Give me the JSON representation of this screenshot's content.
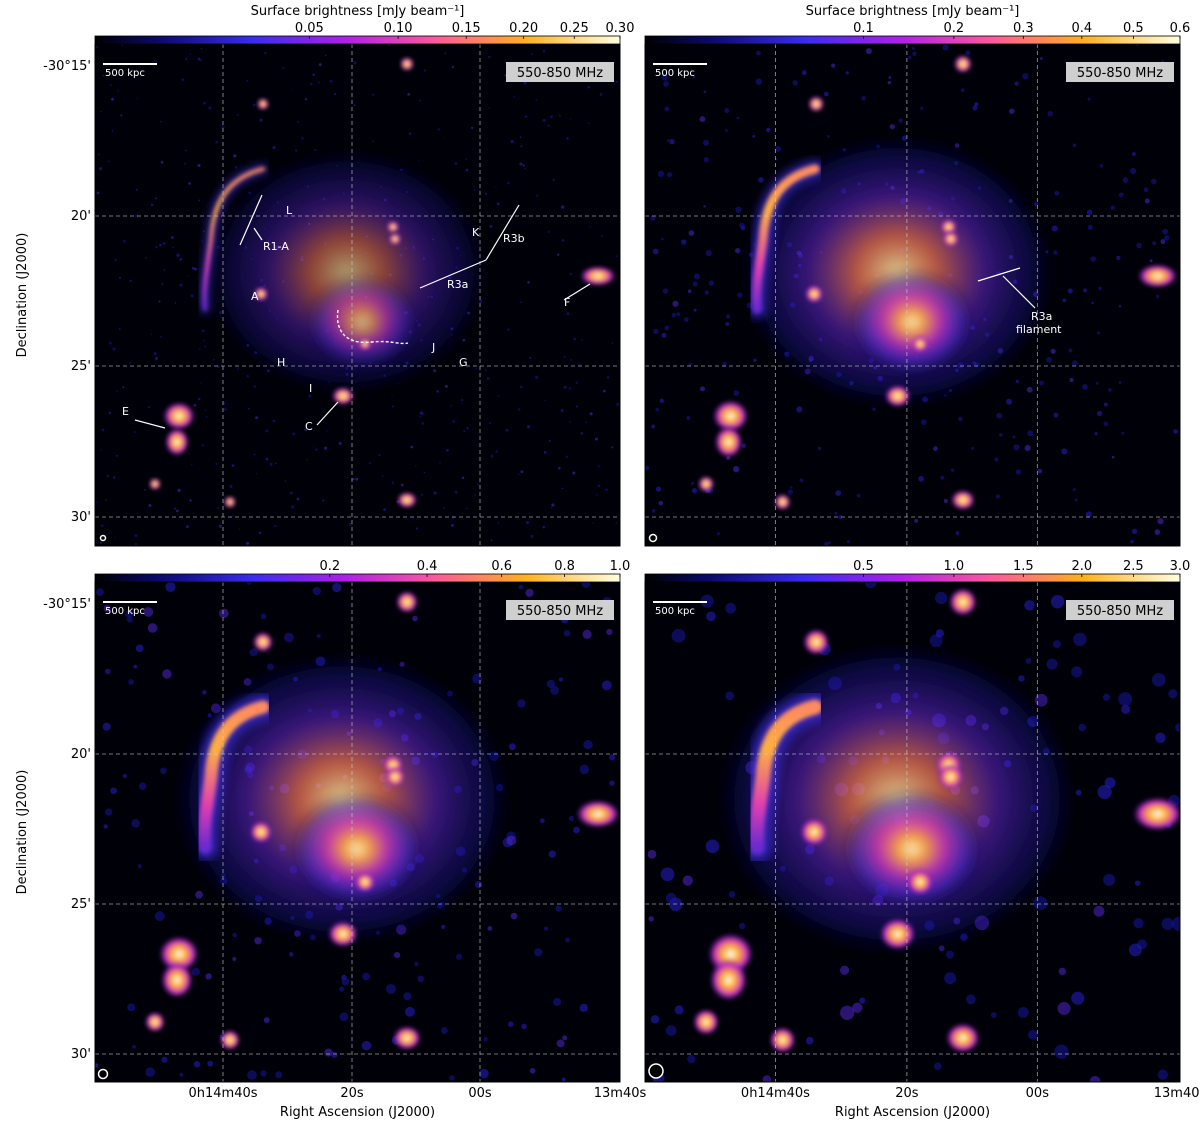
{
  "panels": [
    {
      "id": "tl",
      "colorbar_label": "Surface brightness [mJy beam⁻¹]",
      "colorbar_ticks": [
        "0.05",
        "0.10",
        "0.15",
        "0.20",
        "0.25",
        "0.30"
      ],
      "band": "550-850 MHz",
      "scale_bar": "500 kpc",
      "dec_ticks": [
        "-30°15'",
        "20'",
        "25'",
        "30'"
      ],
      "ylabel": "Declination (J2000)",
      "ra_ticks": [],
      "xlabel": "",
      "annotations": [
        "R1-A",
        "L",
        "K",
        "R3b",
        "R3a",
        "A",
        "F",
        "J",
        "G",
        "H",
        "I",
        "E",
        "C"
      ]
    },
    {
      "id": "tr",
      "colorbar_label": "Surface brightness [mJy beam⁻¹]",
      "colorbar_ticks": [
        "0.1",
        "0.2",
        "0.3",
        "0.4",
        "0.5",
        "0.6"
      ],
      "band": "550-850 MHz",
      "scale_bar": "500 kpc",
      "dec_ticks": [],
      "ylabel": "",
      "ra_ticks": [],
      "xlabel": "",
      "annotations": [
        "R3a",
        "filament"
      ]
    },
    {
      "id": "bl",
      "colorbar_label": "",
      "colorbar_ticks": [
        "0.2",
        "0.4",
        "0.6",
        "0.8",
        "1.0"
      ],
      "band": "550-850 MHz",
      "scale_bar": "500 kpc",
      "dec_ticks": [
        "-30°15'",
        "20'",
        "25'",
        "30'"
      ],
      "ylabel": "Declination (J2000)",
      "ra_ticks": [
        "0h14m40s",
        "20s",
        "00s",
        "13m40s"
      ],
      "xlabel": "Right Ascension (J2000)",
      "annotations": []
    },
    {
      "id": "br",
      "colorbar_label": "",
      "colorbar_ticks": [
        "0.5",
        "1.0",
        "1.5",
        "2.0",
        "2.5",
        "3.0"
      ],
      "band": "550-850 MHz",
      "scale_bar": "500 kpc",
      "dec_ticks": [],
      "ylabel": "",
      "ra_ticks": [
        "0h14m40s",
        "20s",
        "00s",
        "13m40s"
      ],
      "xlabel": "Right Ascension (J2000)",
      "annotations": []
    }
  ]
}
